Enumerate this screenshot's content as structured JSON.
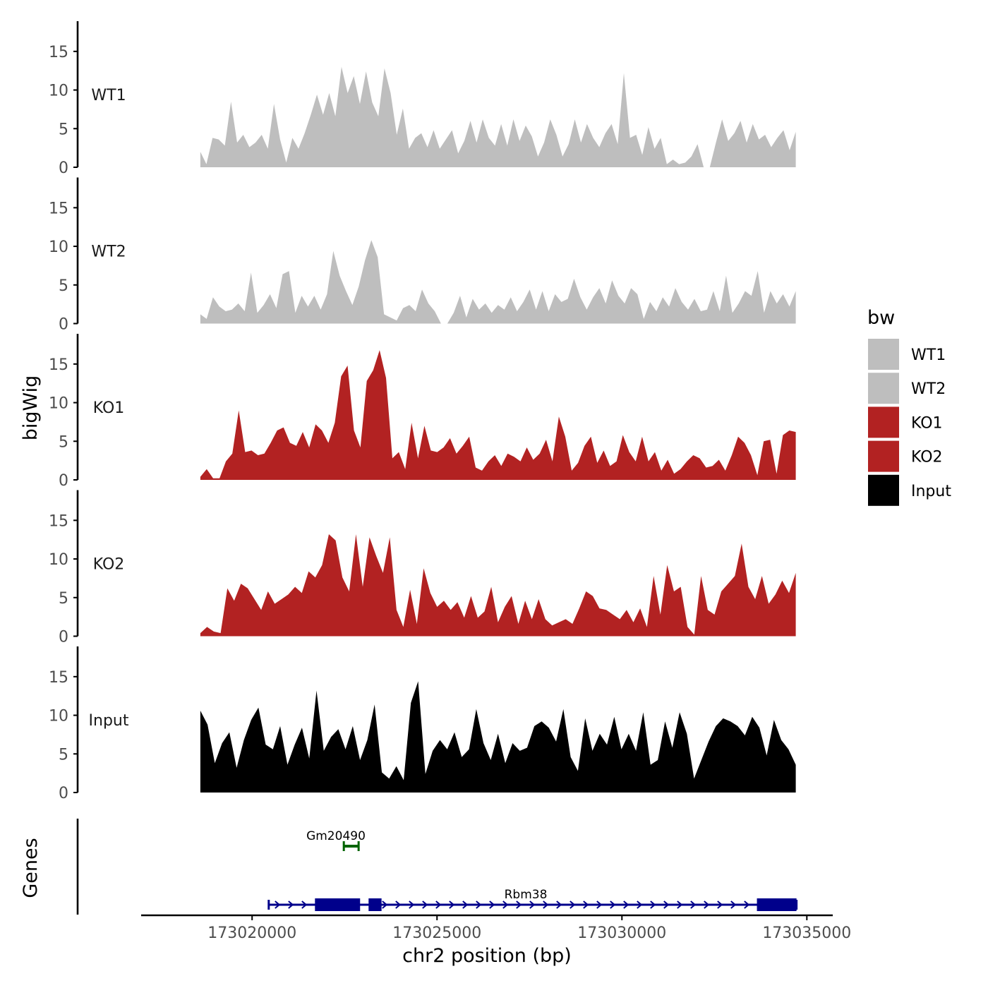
{
  "chart_data": {
    "type": "area",
    "ylabel": "bigWig",
    "xlabel": "chr2 position (bp)",
    "x_range": [
      173017000,
      173035700
    ],
    "x_ticks": [
      173020000,
      173025000,
      173030000,
      173035000
    ],
    "x_tick_labels": [
      "173020000",
      "173025000",
      "173030000",
      "173035000"
    ],
    "ylim": [
      0,
      18
    ],
    "y_ticks": [
      0,
      5,
      10,
      15
    ],
    "y_tick_labels": [
      "0",
      "5",
      "10",
      "15"
    ],
    "series": [
      {
        "name": "WT1",
        "color": "#bebebe",
        "x_start": 173018600,
        "x_end": 173034700,
        "values": [
          2,
          0.4,
          3.8,
          3.6,
          2.8,
          8.5,
          3.2,
          4.2,
          2.6,
          3.2,
          4.2,
          2.4,
          8.2,
          3.6,
          0.6,
          3.8,
          2.4,
          4.4,
          6.8,
          9.4,
          6.8,
          9.6,
          6.6,
          13,
          9.6,
          11.8,
          8.2,
          12.4,
          8.4,
          6.6,
          12.8,
          9.6,
          4.2,
          7.6,
          2.4,
          3.8,
          4.4,
          2.6,
          4.8,
          2.4,
          3.6,
          4.8,
          1.8,
          3.4,
          6,
          3.2,
          6.2,
          3.8,
          2.8,
          5.6,
          2.8,
          6.2,
          3.4,
          5.4,
          4,
          1.4,
          3.2,
          6.2,
          4.2,
          1.4,
          3,
          6.2,
          3.2,
          5.6,
          3.8,
          2.6,
          4.4,
          5.6,
          3,
          12.2,
          3.8,
          4.2,
          1.6,
          5.2,
          2.4,
          3.8,
          0.4,
          1,
          0.4,
          0.6,
          1.4,
          3,
          0,
          0,
          3.2,
          6.2,
          3.4,
          4.4,
          6,
          3.2,
          5.6,
          3.6,
          4.2,
          2.6,
          3.8,
          4.8,
          2.2,
          4.6
        ]
      },
      {
        "name": "WT2",
        "color": "#bebebe",
        "x_start": 173018600,
        "x_end": 173034700,
        "values": [
          1.2,
          0.6,
          3.4,
          2.2,
          1.6,
          1.8,
          2.6,
          1.6,
          6.6,
          1.4,
          2.4,
          3.8,
          2,
          6.4,
          6.8,
          1.4,
          3.6,
          2.2,
          3.6,
          1.8,
          3.8,
          9.4,
          6.2,
          4.2,
          2.4,
          4.8,
          8.2,
          10.8,
          8.6,
          1.2,
          0.8,
          0.4,
          2,
          2.4,
          1.6,
          4.4,
          2.6,
          1.6,
          0,
          0,
          1.4,
          3.6,
          0.8,
          3.2,
          1.8,
          2.6,
          1.4,
          2.4,
          1.8,
          3.4,
          1.6,
          2.8,
          4.4,
          1.8,
          4.2,
          1.6,
          3.8,
          2.8,
          3.2,
          5.8,
          3.4,
          1.8,
          3.4,
          4.6,
          2.6,
          5.6,
          3.6,
          2.6,
          4.6,
          3.8,
          0.6,
          2.8,
          1.6,
          3.4,
          2.2,
          4.6,
          2.8,
          1.8,
          3.2,
          1.6,
          1.8,
          4.2,
          1.6,
          6.2,
          1.4,
          2.6,
          4.2,
          3.6,
          6.8,
          1.4,
          4.2,
          2.6,
          3.8,
          2.2,
          4.2
        ]
      },
      {
        "name": "KO1",
        "color": "#b22222",
        "x_start": 173018600,
        "x_end": 173034700,
        "values": [
          0.4,
          1.4,
          0.2,
          0.2,
          2.4,
          3.4,
          9,
          3.6,
          3.8,
          3.2,
          3.4,
          4.8,
          6.4,
          6.8,
          4.8,
          4.4,
          6.2,
          4.2,
          7.2,
          6.4,
          4.8,
          7.4,
          13.4,
          14.8,
          6.4,
          4.2,
          12.8,
          14.2,
          16.8,
          13.2,
          2.8,
          3.6,
          1.4,
          7.4,
          2.8,
          7,
          3.8,
          3.6,
          4.2,
          5.4,
          3.4,
          4.4,
          5.6,
          1.6,
          1.2,
          2.4,
          3.2,
          1.8,
          3.4,
          3,
          2.4,
          4.2,
          2.6,
          3.4,
          5.2,
          2.4,
          8.2,
          5.6,
          1.2,
          2.2,
          4.4,
          5.6,
          2.2,
          3.8,
          1.8,
          2.4,
          5.8,
          3.6,
          2.4,
          5.6,
          2.4,
          3.6,
          1.2,
          2.6,
          0.8,
          1.4,
          2.4,
          3.2,
          2.8,
          1.6,
          1.8,
          2.6,
          1.2,
          3.2,
          5.6,
          4.8,
          3.2,
          0.6,
          5,
          5.2,
          0.8,
          5.8,
          6.4,
          6.2
        ]
      },
      {
        "name": "KO2",
        "color": "#b22222",
        "x_start": 173018600,
        "x_end": 173034700,
        "values": [
          0.4,
          1.2,
          0.6,
          0.4,
          6.2,
          4.6,
          6.8,
          6.2,
          4.8,
          3.4,
          5.8,
          4.2,
          4.8,
          5.4,
          6.4,
          5.6,
          8.4,
          7.6,
          9.2,
          13.2,
          12.4,
          7.6,
          5.8,
          13.2,
          6.4,
          12.8,
          10.4,
          8.2,
          12.8,
          3.4,
          1.2,
          6,
          1.6,
          8.8,
          5.6,
          3.8,
          4.6,
          3.4,
          4.4,
          2.4,
          5.2,
          2.4,
          3.2,
          6.4,
          1.8,
          3.8,
          5.2,
          1.6,
          4.6,
          2.2,
          4.8,
          2.2,
          1.4,
          1.8,
          2.2,
          1.6,
          3.6,
          5.8,
          5.2,
          3.6,
          3.4,
          2.8,
          2.2,
          3.4,
          1.8,
          3.6,
          1.2,
          7.8,
          2.8,
          9.2,
          5.8,
          6.4,
          1.2,
          0.2,
          7.8,
          3.4,
          2.8,
          5.8,
          6.8,
          7.8,
          12,
          6.4,
          4.8,
          7.8,
          4.2,
          5.4,
          7.2,
          5.6,
          8.2
        ]
      },
      {
        "name": "Input",
        "color": "#000000",
        "x_start": 173018600,
        "x_end": 173034700,
        "values": [
          10.6,
          8.8,
          3.8,
          6.4,
          7.8,
          3.2,
          6.8,
          9.4,
          11,
          6.2,
          5.6,
          8.6,
          3.6,
          6.2,
          8.4,
          4.4,
          13.2,
          5.4,
          7.2,
          8.2,
          5.6,
          8.6,
          4.2,
          6.8,
          11.4,
          2.6,
          1.8,
          3.4,
          1.6,
          11.6,
          14.4,
          2.4,
          5.4,
          6.8,
          5.6,
          7.8,
          4.6,
          5.6,
          10.8,
          6.4,
          4.2,
          7.6,
          3.8,
          6.4,
          5.4,
          5.8,
          8.6,
          9.2,
          8.4,
          6.6,
          10.8,
          4.6,
          2.8,
          9.6,
          5.4,
          7.6,
          6.2,
          9.8,
          5.6,
          7.6,
          5.4,
          10.4,
          3.6,
          4.2,
          9.2,
          5.8,
          10.4,
          7.6,
          1.8,
          4.2,
          6.6,
          8.6,
          9.6,
          9.2,
          8.6,
          7.4,
          9.8,
          8.4,
          4.8,
          9.4,
          6.8,
          5.6,
          3.6
        ]
      }
    ],
    "genes_track": {
      "label": "Genes",
      "genes": [
        {
          "name": "Gm20490",
          "start": 173022480,
          "end": 173022880,
          "strand": "+",
          "color": "#006400"
        },
        {
          "name": "Rbm38",
          "start": 173020450,
          "end": 173034720,
          "strand": "+",
          "color": "#00008b",
          "exons": [
            [
              173021700,
              173022920
            ],
            [
              173023150,
              173023500
            ],
            [
              173033650,
              173034720
            ]
          ]
        }
      ]
    },
    "legend": {
      "title": "bw",
      "position": "right",
      "items": [
        {
          "label": "WT1",
          "color": "#bebebe"
        },
        {
          "label": "WT2",
          "color": "#bebebe"
        },
        {
          "label": "KO1",
          "color": "#b22222"
        },
        {
          "label": "KO2",
          "color": "#b22222"
        },
        {
          "label": "Input",
          "color": "#000000"
        }
      ]
    }
  }
}
